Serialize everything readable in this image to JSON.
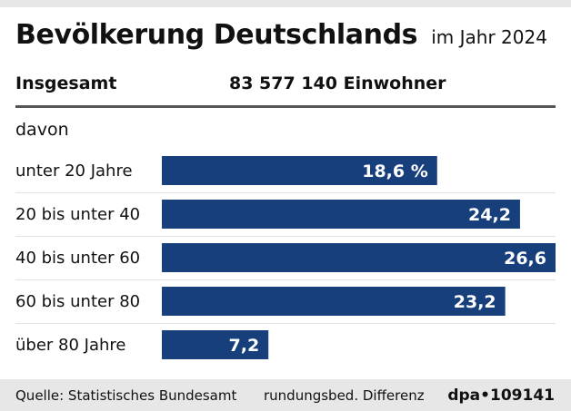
{
  "header": {
    "title": "Bevölkerung Deutschlands",
    "subtitle": "im Jahr 2024"
  },
  "summary": {
    "label": "Insgesamt",
    "value": "83 577 140 Einwohner"
  },
  "section": {
    "label": "davon"
  },
  "footer": {
    "source": "Quelle: Statistisches Bundesamt",
    "note": "rundungsbed. Differenz",
    "credit": "dpa•109141"
  },
  "chart_data": {
    "type": "bar",
    "orientation": "horizontal",
    "categories": [
      "unter 20 Jahre",
      "20 bis unter 40",
      "40 bis unter 60",
      "60 bis unter 80",
      "über 80 Jahre"
    ],
    "values": [
      18.6,
      24.2,
      26.6,
      23.2,
      7.2
    ],
    "value_labels": [
      "18,6 %",
      "24,2",
      "26,6",
      "23,2",
      "7,2"
    ],
    "xlim": [
      0,
      26.6
    ],
    "grid": false,
    "unit": "%",
    "bar_color": "#173f7c",
    "label_color": "#ffffff",
    "row_rule_color": "#e3e3e3"
  }
}
